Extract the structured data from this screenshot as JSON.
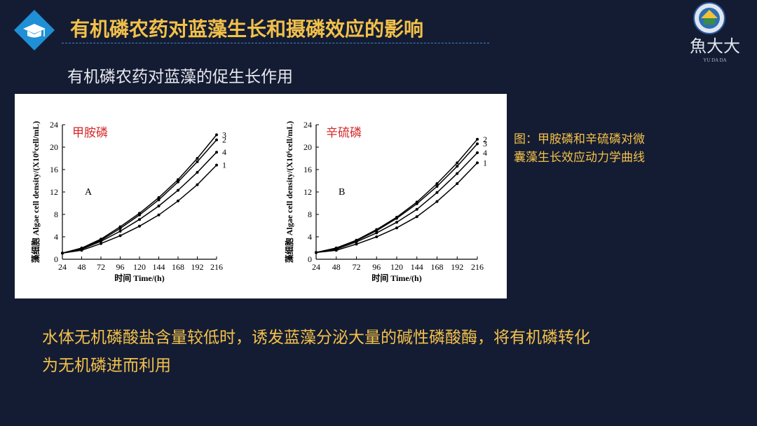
{
  "header": {
    "title": "有机磷农药对蓝藻生长和摄磷效应的影响",
    "subtitle": "有机磷农药对蓝藻的促生长作用"
  },
  "logo": {
    "text": "魚大大",
    "roman": "YU DA DA"
  },
  "caption": {
    "line1": "图：甲胺磷和辛硫磷对微",
    "line2": "囊藻生长效应动力学曲线"
  },
  "body_text": {
    "line1": "水体无机磷酸盐含量较低时，诱发蓝藻分泌大量的碱性磷酸酶，将有机磷转化",
    "line2": "为无机磷进而利用"
  },
  "colors": {
    "title": "#f3c14a",
    "background": "#141c33",
    "accent": "#3f86c6",
    "chart_label": "#d42a2a"
  },
  "chart_data": [
    {
      "type": "line",
      "label": "甲胺磷",
      "panel": "A",
      "xlabel_cn": "时间",
      "xlabel": "Time/(h)",
      "ylabel_cn": "藻细胞",
      "ylabel": "Algae cell density/(X10⁶cell/mL)",
      "x": [
        24,
        48,
        72,
        96,
        120,
        144,
        168,
        192,
        216
      ],
      "xlim": [
        24,
        216
      ],
      "ylim": [
        0,
        24
      ],
      "yticks": [
        0,
        4,
        8,
        12,
        16,
        20,
        24
      ],
      "series": [
        {
          "name": "3",
          "values": [
            1.1,
            2.0,
            3.6,
            5.8,
            8.2,
            11.0,
            14.2,
            18.0,
            22.2
          ]
        },
        {
          "name": "2",
          "values": [
            1.1,
            1.9,
            3.4,
            5.5,
            7.9,
            10.6,
            13.8,
            17.4,
            21.3
          ]
        },
        {
          "name": "4",
          "values": [
            1.1,
            1.8,
            3.2,
            5.0,
            7.1,
            9.5,
            12.3,
            15.5,
            19.1
          ]
        },
        {
          "name": "1",
          "values": [
            1.1,
            1.6,
            2.8,
            4.2,
            5.9,
            7.9,
            10.4,
            13.3,
            16.8
          ]
        }
      ]
    },
    {
      "type": "line",
      "label": "辛硫磷",
      "panel": "B",
      "xlabel_cn": "时间",
      "xlabel": "Time/(h)",
      "ylabel_cn": "藻细胞",
      "ylabel": "Algae cell density/(X10⁶cell/mL)",
      "x": [
        24,
        48,
        72,
        96,
        120,
        144,
        168,
        192,
        216
      ],
      "xlim": [
        24,
        216
      ],
      "ylim": [
        0,
        24
      ],
      "yticks": [
        0,
        4,
        8,
        12,
        16,
        20,
        24
      ],
      "series": [
        {
          "name": "2",
          "values": [
            1.2,
            2.0,
            3.4,
            5.3,
            7.5,
            10.2,
            13.5,
            17.2,
            21.4
          ]
        },
        {
          "name": "3",
          "values": [
            1.2,
            2.0,
            3.3,
            5.1,
            7.3,
            9.9,
            13.0,
            16.6,
            20.6
          ]
        },
        {
          "name": "4",
          "values": [
            1.2,
            1.8,
            3.1,
            4.7,
            6.6,
            8.9,
            11.9,
            15.3,
            19.0
          ]
        },
        {
          "name": "1",
          "values": [
            1.2,
            1.6,
            2.7,
            4.0,
            5.6,
            7.6,
            10.3,
            13.5,
            17.2
          ]
        }
      ]
    }
  ]
}
